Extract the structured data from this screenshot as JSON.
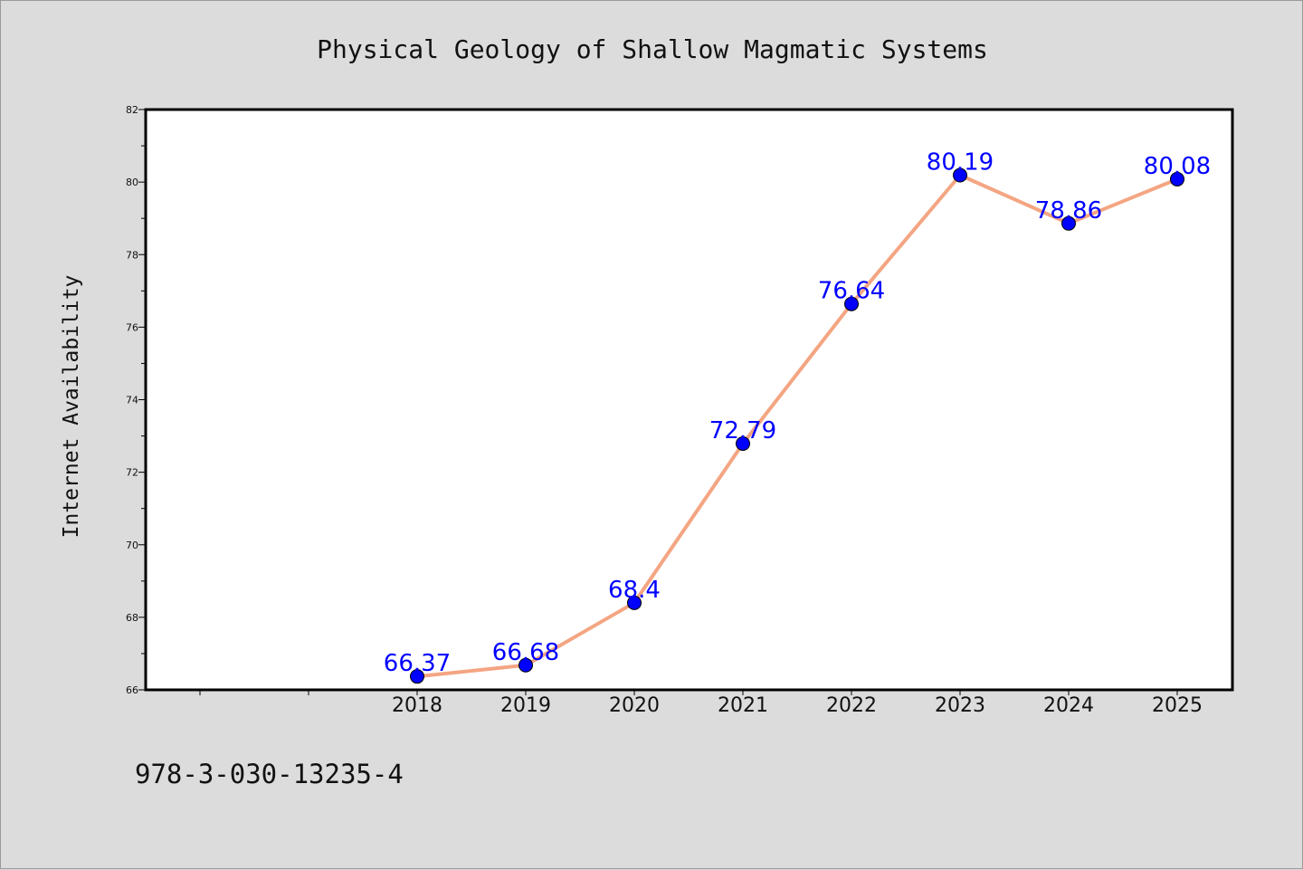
{
  "chart_data": {
    "type": "line",
    "title": "Physical Geology of Shallow Magmatic Systems",
    "ylabel": "Internet Availability",
    "xlabel": "",
    "x": [
      2016,
      2017,
      2018,
      2019,
      2020,
      2021,
      2022,
      2023,
      2024,
      2025
    ],
    "x_tick_labels": [
      "",
      "",
      "2018",
      "2019",
      "2020",
      "2021",
      "2022",
      "2023",
      "2024",
      "2025"
    ],
    "ylim": [
      66,
      82
    ],
    "y_ticks": [
      66,
      68,
      70,
      72,
      74,
      76,
      78,
      80,
      82
    ],
    "y_tick_labels": [
      "66",
      "68",
      "70",
      "72",
      "74",
      "76",
      "78",
      "80",
      "82"
    ],
    "series": [
      {
        "x": [
          2018,
          2019,
          2020,
          2021,
          2022,
          2023,
          2024,
          2025
        ],
        "values": [
          66.37,
          66.68,
          68.4,
          72.79,
          76.64,
          80.19,
          78.86,
          80.08
        ],
        "labels": [
          "66.37",
          "66.68",
          "68.4",
          "72.79",
          "76.64",
          "80.19",
          "78.86",
          "80.08"
        ],
        "line_color": "#f4a582",
        "marker_color": "#0000ff",
        "label_color": "#0000ff"
      }
    ],
    "grid": false,
    "legend": "none"
  },
  "footer": {
    "isbn": "978-3-030-13235-4"
  }
}
